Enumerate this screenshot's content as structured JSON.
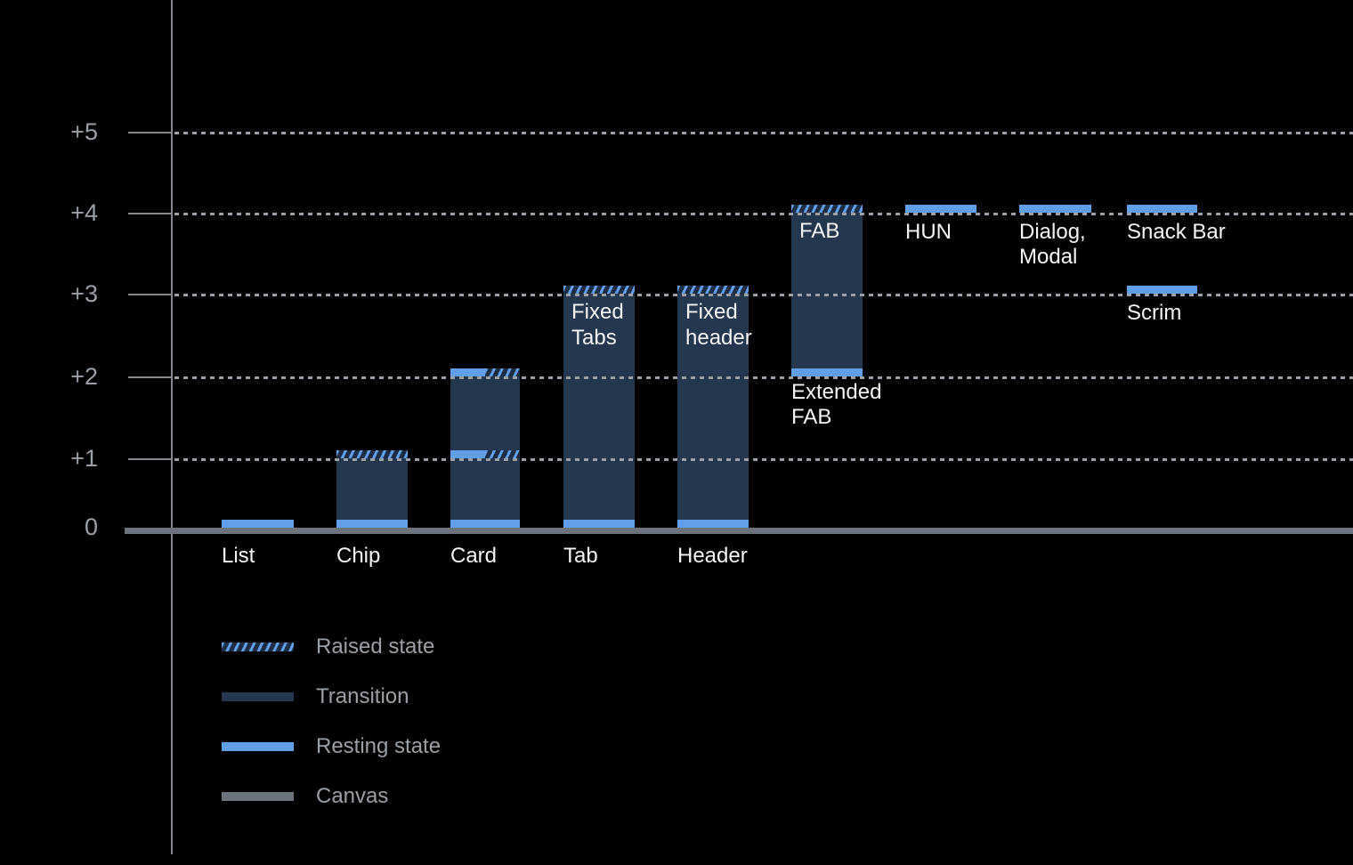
{
  "colors": {
    "background": "#000000",
    "resting_state": "#61A0E8",
    "transition": "#24374F",
    "raised_hatch_background": "#1C2D45",
    "canvas": "#6D737C",
    "axis": "#85898F",
    "gridline": "#9CA1A7",
    "tick_label": "#9AA0A6",
    "bar_label": "#F4F5F6",
    "legend_label": "#9AA0A6"
  },
  "chart_data": {
    "type": "bar",
    "title": "",
    "xlabel": "",
    "ylabel": "",
    "ylim": [
      0,
      5.5
    ],
    "grid": "dotted horizontal lines at each elevation level",
    "legend_position": "bottom-left",
    "y_axis": {
      "ticks": [
        {
          "label": "+5",
          "level": 5
        },
        {
          "label": "+4",
          "level": 4
        },
        {
          "label": "+3",
          "level": 3
        },
        {
          "label": "+2",
          "level": 2
        },
        {
          "label": "+1",
          "level": 1
        },
        {
          "label": "0",
          "level": 0
        }
      ]
    },
    "components": [
      {
        "name": "list",
        "label": "List",
        "label_pos": "axis",
        "bands": [
          {
            "level": 0,
            "type": "resting"
          }
        ]
      },
      {
        "name": "chip",
        "label": "Chip",
        "label_pos": "axis",
        "fill": [
          0,
          1
        ],
        "bands": [
          {
            "level": 0,
            "type": "resting"
          },
          {
            "level": 1,
            "type": "raised"
          }
        ]
      },
      {
        "name": "card",
        "label": "Card",
        "label_pos": "axis",
        "fill": [
          0,
          2
        ],
        "bands": [
          {
            "level": 0,
            "type": "resting"
          },
          {
            "level": 1,
            "type": "split"
          },
          {
            "level": 2,
            "type": "split"
          }
        ]
      },
      {
        "name": "tab",
        "label": "Tab",
        "label_pos": "axis",
        "in_bar_label": "Fixed\nTabs",
        "fill": [
          0,
          3
        ],
        "bands": [
          {
            "level": 0,
            "type": "resting"
          },
          {
            "level": 3,
            "type": "raised"
          }
        ]
      },
      {
        "name": "header",
        "label": "Header",
        "label_pos": "axis",
        "in_bar_label": "Fixed\nheader",
        "fill": [
          0,
          3
        ],
        "bands": [
          {
            "level": 0,
            "type": "resting"
          },
          {
            "level": 3,
            "type": "raised"
          }
        ]
      },
      {
        "name": "fab",
        "label": "Extended\nFAB",
        "label_pos": "below",
        "in_bar_label": "FAB",
        "fill": [
          2,
          4
        ],
        "bands": [
          {
            "level": 2,
            "type": "resting"
          },
          {
            "level": 4,
            "type": "raised"
          }
        ]
      },
      {
        "name": "hun",
        "label": "HUN",
        "label_pos": "below",
        "bands": [
          {
            "level": 4,
            "type": "resting"
          }
        ]
      },
      {
        "name": "dialog-modal",
        "label": "Dialog,\nModal",
        "label_pos": "below",
        "bands": [
          {
            "level": 4,
            "type": "resting"
          }
        ]
      },
      {
        "name": "snack-bar",
        "label": "Snack Bar",
        "label_pos": "below",
        "bands": [
          {
            "level": 4,
            "type": "resting"
          }
        ]
      },
      {
        "name": "scrim",
        "label": "Scrim",
        "label_pos": "below",
        "bands": [
          {
            "level": 3,
            "type": "resting"
          }
        ]
      }
    ]
  },
  "legend": {
    "items": [
      {
        "name": "raised",
        "label": "Raised state"
      },
      {
        "name": "transition",
        "label": "Transition"
      },
      {
        "name": "resting",
        "label": "Resting state"
      },
      {
        "name": "canvas",
        "label": "Canvas"
      }
    ]
  }
}
